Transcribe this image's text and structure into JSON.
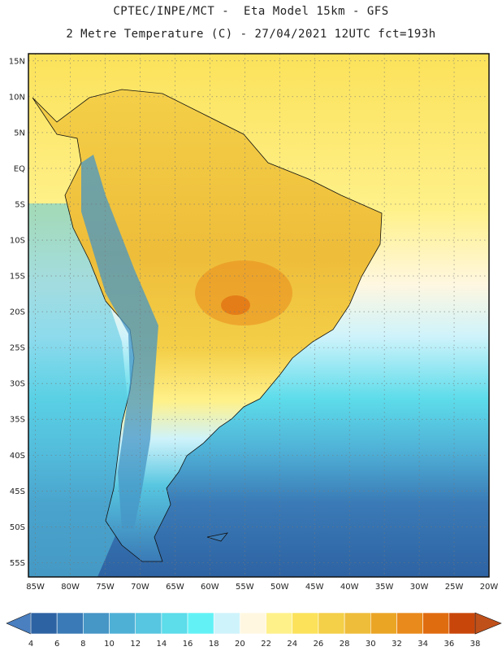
{
  "title": {
    "line1": "CPTEC/INPE/MCT -  Eta Model 15km - GFS",
    "line2": "2 Metre Temperature (C) - 27/04/2021 12UTC fct=193h"
  },
  "map": {
    "region": "South America",
    "lat_range": [
      -57,
      16
    ],
    "lon_range": [
      -86,
      -20
    ],
    "lat_ticks": [
      "15N",
      "10N",
      "5N",
      "EQ",
      "5S",
      "10S",
      "15S",
      "20S",
      "25S",
      "30S",
      "35S",
      "40S",
      "45S",
      "50S",
      "55S"
    ],
    "lat_values": [
      15,
      10,
      5,
      0,
      -5,
      -10,
      -15,
      -20,
      -25,
      -30,
      -35,
      -40,
      -45,
      -50,
      -55
    ],
    "lon_ticks": [
      "85W",
      "80W",
      "75W",
      "70W",
      "65W",
      "60W",
      "55W",
      "50W",
      "45W",
      "40W",
      "35W",
      "30W",
      "25W",
      "20W"
    ],
    "lon_values": [
      -85,
      -80,
      -75,
      -70,
      -65,
      -60,
      -55,
      -50,
      -45,
      -40,
      -35,
      -30,
      -25,
      -20
    ]
  },
  "colorbar": {
    "labels": [
      "4",
      "6",
      "8",
      "10",
      "12",
      "14",
      "16",
      "18",
      "20",
      "22",
      "24",
      "26",
      "28",
      "30",
      "32",
      "34",
      "36",
      "38"
    ],
    "below_color": "#4a7fc0",
    "above_color": "#c0501a",
    "colors": [
      "#2e63a3",
      "#3a7ab6",
      "#4696c6",
      "#4fb0d6",
      "#57c6e0",
      "#5ddcea",
      "#62f2f6",
      "#cff3fb",
      "#fff7e0",
      "#fff18a",
      "#fbe25a",
      "#f4cf48",
      "#eebd3a",
      "#eba525",
      "#e98a1c",
      "#e06c10",
      "#c9460a"
    ]
  }
}
